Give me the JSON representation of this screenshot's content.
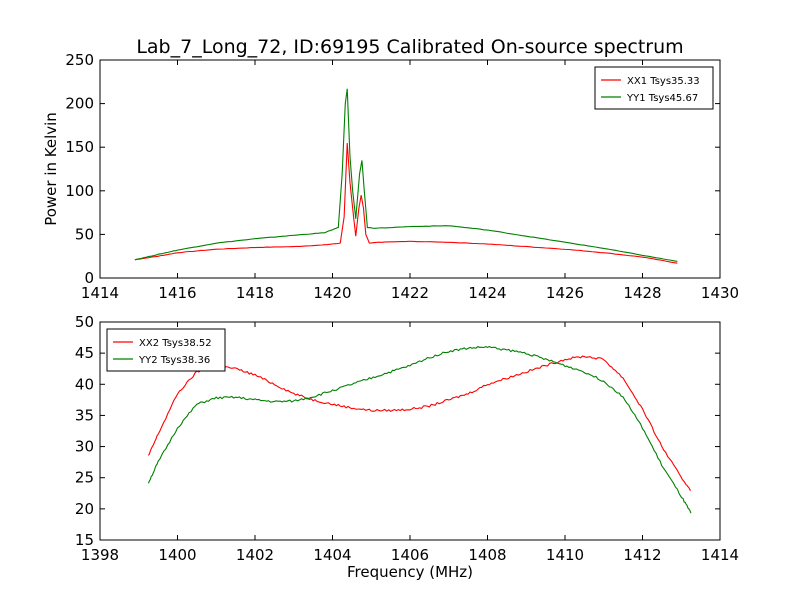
{
  "figure": {
    "title": "Lab_7_Long_72, ID:69195 Calibrated On-source spectrum"
  },
  "chart_data": [
    {
      "type": "line",
      "title": "Lab_7_Long_72, ID:69195 Calibrated On-source spectrum",
      "xlabel": "",
      "ylabel": "Power in Kelvin",
      "xlim": [
        1414,
        1430
      ],
      "ylim": [
        0,
        250
      ],
      "xticks": [
        1414,
        1416,
        1418,
        1420,
        1422,
        1424,
        1426,
        1428,
        1430
      ],
      "yticks": [
        0,
        50,
        100,
        150,
        200,
        250
      ],
      "grid": false,
      "legend": "top-right",
      "series": [
        {
          "name": "XX1 Tsys35.33",
          "color": "#ff0000",
          "x": [
            1414.9,
            1415.5,
            1416,
            1417,
            1418,
            1419,
            1419.8,
            1420.2,
            1420.3,
            1420.38,
            1420.45,
            1420.52,
            1420.6,
            1420.68,
            1420.74,
            1420.8,
            1420.86,
            1420.95,
            1421.2,
            1422,
            1423,
            1424,
            1425,
            1426,
            1427,
            1428,
            1428.9
          ],
          "y": [
            21,
            25,
            29,
            33,
            35,
            36,
            38,
            40,
            70,
            155,
            110,
            80,
            48,
            80,
            95,
            80,
            50,
            40,
            41,
            42,
            41,
            39,
            36,
            33,
            29,
            24,
            17
          ]
        },
        {
          "name": "YY1 Tsys45.67",
          "color": "#008000",
          "x": [
            1414.9,
            1415.5,
            1416,
            1417,
            1418,
            1419,
            1419.8,
            1420.15,
            1420.25,
            1420.33,
            1420.38,
            1420.45,
            1420.52,
            1420.6,
            1420.7,
            1420.76,
            1420.82,
            1420.9,
            1421.1,
            1422,
            1423,
            1424,
            1425,
            1426,
            1427,
            1428,
            1428.9
          ],
          "y": [
            21,
            27,
            32,
            40,
            45,
            49,
            52,
            58,
            120,
            200,
            217,
            140,
            100,
            68,
            120,
            135,
            100,
            58,
            57,
            59,
            60,
            55,
            48,
            41,
            34,
            26,
            19
          ]
        }
      ]
    },
    {
      "type": "line",
      "title": "",
      "xlabel": "Frequency (MHz)",
      "ylabel": "",
      "xlim": [
        1398,
        1414
      ],
      "ylim": [
        15,
        50
      ],
      "xticks": [
        1398,
        1400,
        1402,
        1404,
        1406,
        1408,
        1410,
        1412,
        1414
      ],
      "yticks": [
        15,
        20,
        25,
        30,
        35,
        40,
        45,
        50
      ],
      "grid": false,
      "legend": "top-left",
      "series": [
        {
          "name": "XX2 Tsys38.52",
          "color": "#ff0000",
          "x": [
            1399.25,
            1399.5,
            1400,
            1400.5,
            1401,
            1401.5,
            1402,
            1402.5,
            1403,
            1403.5,
            1404,
            1404.5,
            1405,
            1405.5,
            1406,
            1406.5,
            1407,
            1407.5,
            1408,
            1408.5,
            1409,
            1409.5,
            1410,
            1410.5,
            1411,
            1411.5,
            1412,
            1412.5,
            1413,
            1413.25
          ],
          "y": [
            28.5,
            32,
            38.5,
            42,
            43,
            42.5,
            41.5,
            40,
            38.5,
            37.5,
            36.8,
            36.2,
            35.8,
            35.8,
            36,
            36.5,
            37.5,
            38.5,
            40,
            41,
            42,
            43,
            44,
            44.5,
            44,
            41,
            36,
            30,
            25,
            23
          ]
        },
        {
          "name": "YY2 Tsys38.36",
          "color": "#008000",
          "x": [
            1399.25,
            1399.5,
            1400,
            1400.5,
            1401,
            1401.5,
            1402,
            1402.5,
            1403,
            1403.5,
            1404,
            1404.5,
            1405,
            1405.5,
            1406,
            1406.5,
            1407,
            1407.5,
            1408,
            1408.5,
            1409,
            1409.5,
            1410,
            1410.5,
            1411,
            1411.5,
            1412,
            1412.5,
            1413,
            1413.25
          ],
          "y": [
            24.2,
            27.5,
            33,
            36.8,
            37.8,
            37.9,
            37.5,
            37.2,
            37.3,
            38,
            39,
            40,
            41,
            42,
            43,
            44.3,
            45.3,
            45.8,
            46,
            45.5,
            45,
            44,
            43,
            42,
            40.5,
            38,
            33,
            27,
            22,
            19.3
          ]
        }
      ]
    }
  ]
}
